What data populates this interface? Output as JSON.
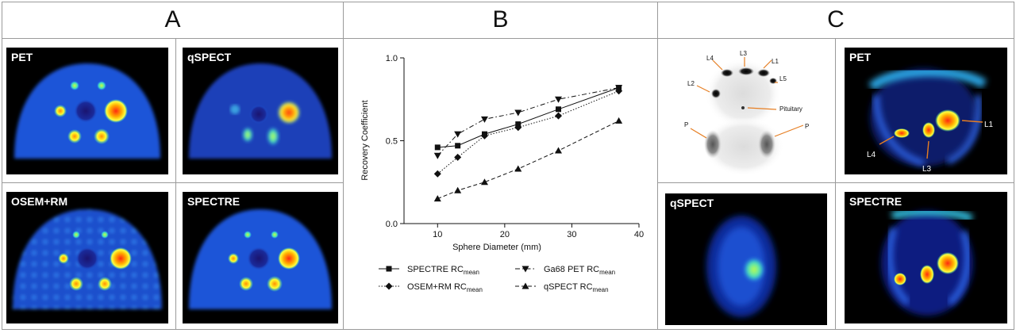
{
  "sections": {
    "a": "A",
    "b": "B",
    "c": "C"
  },
  "panels_a": [
    "PET",
    "qSPECT",
    "OSEM+RM",
    "SPECTRE"
  ],
  "panels_c": [
    "PET",
    "qSPECT",
    "SPECTRE"
  ],
  "mip_labels": {
    "l4": "L4",
    "l3": "L3",
    "l1": "L1",
    "l2": "L2",
    "l5": "L5",
    "pituitary": "Pituitary",
    "p_left": "P",
    "p_right": "P"
  },
  "pet_c_labels": {
    "l1": "L1",
    "l3": "L3",
    "l4": "L4"
  },
  "colors": {
    "arrow": "#e67e22",
    "uptake_high": "#e8121a",
    "background_phantom": "#1f56d6"
  },
  "chart_data": {
    "type": "line",
    "xlabel": "Sphere Diameter (mm)",
    "ylabel": "Recovery Coefficient",
    "xlim": [
      5,
      40
    ],
    "ylim": [
      0,
      1.0
    ],
    "xticks": [
      10,
      20,
      30,
      40
    ],
    "yticks": [
      0.0,
      0.5,
      1.0
    ],
    "series": [
      {
        "name": "SPECTRE RC",
        "sub": "mean",
        "marker": "square",
        "dash": "solid",
        "x": [
          10,
          13,
          17,
          22,
          28,
          37
        ],
        "values": [
          0.46,
          0.47,
          0.54,
          0.6,
          0.69,
          0.82
        ]
      },
      {
        "name": "OSEM+RM RC",
        "sub": "mean",
        "marker": "diamond",
        "dash": "dotted",
        "x": [
          10,
          13,
          17,
          22,
          28,
          37
        ],
        "values": [
          0.3,
          0.4,
          0.53,
          0.58,
          0.65,
          0.8
        ]
      },
      {
        "name": "Ga68 PET RC",
        "sub": "mean",
        "marker": "triangle-down",
        "dash": "dashdot",
        "x": [
          10,
          13,
          17,
          22,
          28,
          37
        ],
        "values": [
          0.41,
          0.54,
          0.63,
          0.67,
          0.75,
          0.82
        ]
      },
      {
        "name": "qSPECT RC",
        "sub": "mean",
        "marker": "triangle-up",
        "dash": "dashed",
        "x": [
          10,
          13,
          17,
          22,
          28,
          37
        ],
        "values": [
          0.15,
          0.2,
          0.25,
          0.33,
          0.44,
          0.62
        ]
      }
    ]
  }
}
